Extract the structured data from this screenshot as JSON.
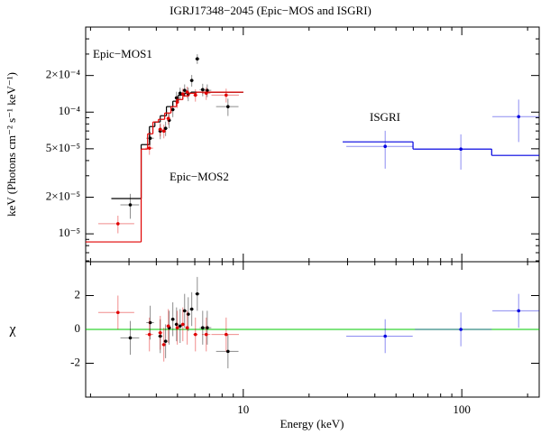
{
  "chart_data": [
    {
      "type": "scatter",
      "title": "IGRJ17348−2045 (Epic−MOS and ISGRI)",
      "ylabel": "keV (Photons cm⁻² s⁻¹ keV⁻¹)",
      "xscale": "log",
      "yscale": "log",
      "xlim": [
        1.9,
        226
      ],
      "ylim": [
        5.9e-06,
        0.0005
      ],
      "xticks": [
        10,
        100
      ],
      "xticks_minor": [
        2,
        3,
        4,
        5,
        6,
        7,
        8,
        9,
        20,
        30,
        40,
        50,
        60,
        70,
        80,
        90,
        200
      ],
      "yticks": [
        {
          "value": 1e-05,
          "label": "10⁻⁵"
        },
        {
          "value": 2e-05,
          "label": "2×10⁻⁵"
        },
        {
          "value": 5e-05,
          "label": "5×10⁻⁵"
        },
        {
          "value": 0.0001,
          "label": "10⁻⁴"
        },
        {
          "value": 0.0002,
          "label": "2×10⁻⁴"
        }
      ],
      "yticks_minor": [
        6e-06,
        7e-06,
        8e-06,
        9e-06,
        3e-05,
        4e-05,
        6e-05,
        7e-05,
        8e-05,
        9e-05,
        0.0003,
        0.0004,
        0.0005
      ],
      "series": [
        {
          "name": "Epic−MOS1",
          "color": "#000000",
          "x": [
            3.04,
            3.75,
            4.17,
            4.41,
            4.58,
            4.76,
            4.95,
            5.14,
            5.39,
            5.6,
            5.81,
            6.16,
            6.52,
            6.84,
            8.51
          ],
          "x_err": [
            0.3,
            0.15,
            0.1,
            0.1,
            0.1,
            0.1,
            0.1,
            0.1,
            0.12,
            0.12,
            0.12,
            0.15,
            0.2,
            0.3,
            1.0
          ],
          "values": [
            1.73e-05,
            6.1e-05,
            6.99e-05,
            7.36e-05,
            8.57e-05,
            0.000105,
            0.000131,
            0.000143,
            0.000151,
            0.000141,
            0.000182,
            0.000274,
            0.000153,
            0.000151,
            0.000111
          ],
          "y_err": [
            4e-06,
            8e-06,
            1e-05,
            1e-05,
            1.2e-05,
            1.4e-05,
            1.6e-05,
            1.6e-05,
            1.8e-05,
            1.8e-05,
            2e-05,
            2.5e-05,
            1.8e-05,
            1.8e-05,
            1.8e-05
          ],
          "model_x": [
            2.49,
            3.41,
            3.72,
            3.94,
            4.17,
            4.45,
            4.76,
            5.04,
            5.39,
            5.76,
            6.21,
            6.97,
            10
          ],
          "model": [
            1.95e-05,
            5.41e-05,
            7.61e-05,
            8.3e-05,
            9.34e-05,
            0.000111,
            0.000123,
            0.000138,
            0.000143,
            0.000146,
            0.000146,
            0.000146
          ]
        },
        {
          "name": "Epic−MOS2",
          "color": "#e00000",
          "x": [
            2.67,
            3.72,
            4.17,
            4.33,
            4.54,
            4.99,
            5.29,
            5.54,
            6.04,
            6.77,
            8.35
          ],
          "x_err": [
            0.5,
            0.15,
            0.1,
            0.1,
            0.1,
            0.1,
            0.1,
            0.12,
            0.15,
            0.3,
            1.2
          ],
          "values": [
            1.21e-05,
            5.06e-05,
            7.23e-05,
            6.99e-05,
            8.87e-05,
            0.000121,
            0.000141,
            0.000146,
            0.000138,
            0.000143,
            0.000138
          ],
          "y_err": [
            2e-06,
            6e-06,
            9e-06,
            9e-06,
            1e-05,
            1.3e-05,
            1.5e-05,
            1.6e-05,
            1.6e-05,
            1.7e-05,
            1.8e-05
          ],
          "model_x": [
            1.9,
            3.41,
            3.65,
            3.86,
            4.09,
            4.37,
            4.67,
            4.95,
            5.29,
            5.65,
            6.1,
            6.84,
            10
          ],
          "model": [
            8.58e-06,
            4.97e-05,
            6.64e-05,
            8.3e-05,
            8.73e-05,
            9.84e-05,
            0.000111,
            0.000127,
            0.000136,
            0.000143,
            0.000146,
            0.000146
          ]
        },
        {
          "name": "ISGRI",
          "color": "#0000e0",
          "x": [
            44.6,
            99,
            182
          ],
          "x_err": [
            15,
            38,
            44
          ],
          "values": [
            5.23e-05,
            4.97e-05,
            9.18e-05
          ],
          "y_err": [
            1.8e-05,
            1.6e-05,
            3.5e-05
          ],
          "model_x": [
            28.5,
            59.8,
            137,
            226
          ],
          "model": [
            5.7e-05,
            4.97e-05,
            4.41e-05
          ]
        }
      ]
    },
    {
      "type": "scatter",
      "xlabel": "Energy (keV)",
      "ylabel": "χ",
      "xscale": "log",
      "xlim": [
        1.9,
        226
      ],
      "ylim": [
        -4,
        4
      ],
      "xticks": [
        10,
        100
      ],
      "xticks_minor": [
        2,
        3,
        4,
        5,
        6,
        7,
        8,
        9,
        20,
        30,
        40,
        50,
        60,
        70,
        80,
        90,
        200
      ],
      "yticks": [
        -2,
        0,
        2
      ],
      "hline": {
        "value": 0,
        "color": "#00c800"
      },
      "series": [
        {
          "color": "#000000",
          "values": [
            -0.5,
            0.4,
            -0.4,
            -0.7,
            0.1,
            0.6,
            0.3,
            0.2,
            1.1,
            0.9,
            1.2,
            2.1,
            0.1,
            0.1,
            -1.3
          ],
          "y_err": [
            1,
            1,
            1,
            1,
            1,
            1,
            1,
            1,
            1,
            1,
            1,
            1,
            1,
            1,
            1
          ]
        },
        {
          "color": "#e00000",
          "values": [
            1.0,
            -0.3,
            -0.2,
            -0.9,
            0.2,
            0.1,
            0.3,
            0.1,
            -0.3,
            -0.3,
            -0.3
          ],
          "y_err": [
            1,
            1,
            1,
            1,
            1,
            1,
            1,
            1,
            1,
            1,
            1
          ]
        },
        {
          "color": "#0000e0",
          "values": [
            -0.4,
            0.0,
            1.1
          ],
          "y_err": [
            1,
            1,
            1
          ]
        }
      ]
    }
  ]
}
